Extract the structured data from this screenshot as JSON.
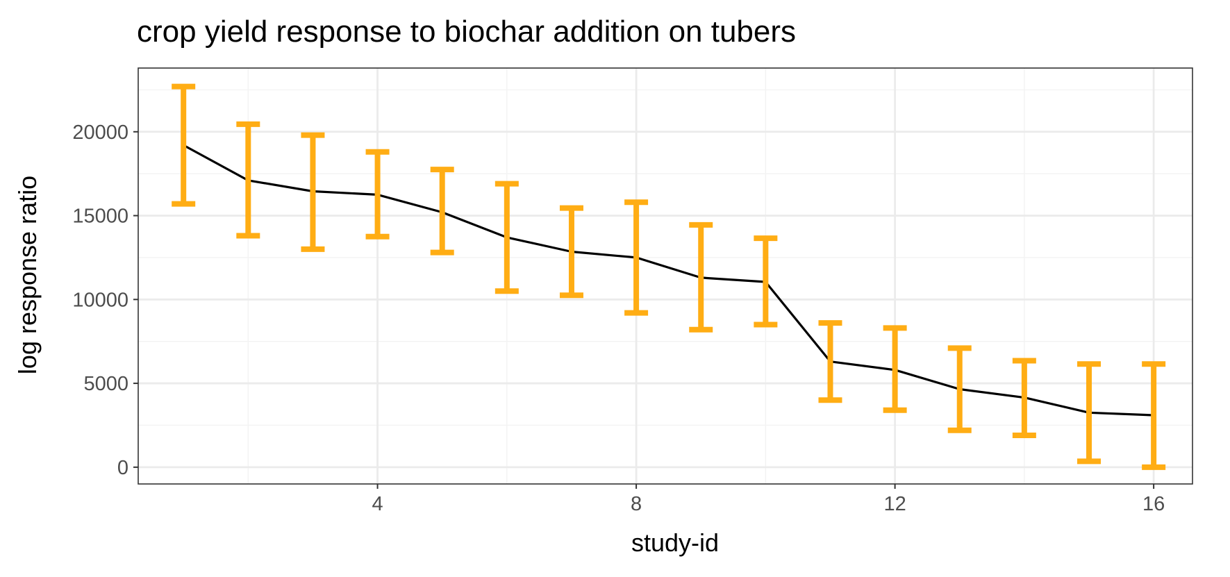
{
  "chart_data": {
    "type": "line",
    "title": "crop yield response to biochar addition on tubers",
    "xlabel": "study-id",
    "ylabel": "log response ratio",
    "xlim": [
      0.3,
      16.6
    ],
    "ylim": [
      -1000,
      23800
    ],
    "x_ticks": [
      4,
      8,
      12,
      16
    ],
    "x_minor_ticks": [
      2,
      6,
      10,
      14
    ],
    "y_ticks": [
      0,
      5000,
      10000,
      15000,
      20000
    ],
    "y_minor_ticks": [
      2500,
      7500,
      12500,
      17500,
      22500
    ],
    "grid": true,
    "legend": "none",
    "colors": {
      "line": "#000000",
      "error_bar": "#ffad14",
      "panel_border": "#333333",
      "grid_major": "#ebebeb",
      "grid_minor": "#f3f3f3"
    },
    "series": [
      {
        "x": [
          1,
          2,
          3,
          4,
          5,
          6,
          7,
          8,
          9,
          10,
          11,
          12,
          13,
          14,
          15,
          16
        ],
        "y": [
          19200,
          17100,
          16450,
          16250,
          15200,
          13700,
          12850,
          12500,
          11300,
          11050,
          6300,
          5800,
          4650,
          4150,
          3250,
          3100
        ],
        "lower": [
          15700,
          13800,
          13000,
          13750,
          12800,
          10500,
          10250,
          9200,
          8200,
          8500,
          4000,
          3400,
          2200,
          1900,
          350,
          0
        ],
        "upper": [
          22700,
          20450,
          19800,
          18800,
          17750,
          16900,
          15450,
          15800,
          14450,
          13650,
          8600,
          8300,
          7100,
          6350,
          6150,
          6150
        ]
      }
    ]
  }
}
